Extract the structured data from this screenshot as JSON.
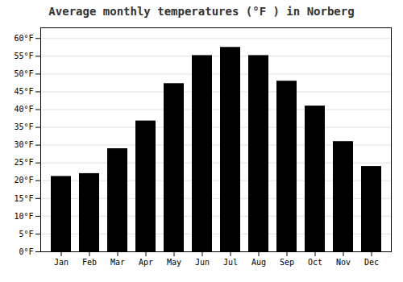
{
  "chart_data": {
    "type": "bar",
    "title": "Average monthly temperatures (°F ) in Norberg",
    "categories": [
      "Jan",
      "Feb",
      "Mar",
      "Apr",
      "May",
      "Jun",
      "Jul",
      "Aug",
      "Sep",
      "Oct",
      "Nov",
      "Dec"
    ],
    "values": [
      21.2,
      22.0,
      29.0,
      36.8,
      47.3,
      55.2,
      57.5,
      55.2,
      48.0,
      41.0,
      31.0,
      24.0
    ],
    "ylim": [
      0,
      63
    ],
    "yticks": [
      {
        "value": 0,
        "label": "0°F"
      },
      {
        "value": 5,
        "label": "5°F"
      },
      {
        "value": 10,
        "label": "10°F"
      },
      {
        "value": 15,
        "label": "15°F"
      },
      {
        "value": 20,
        "label": "20°F"
      },
      {
        "value": 25,
        "label": "25°F"
      },
      {
        "value": 30,
        "label": "30°F"
      },
      {
        "value": 35,
        "label": "35°F"
      },
      {
        "value": 40,
        "label": "40°F"
      },
      {
        "value": 45,
        "label": "45°F"
      },
      {
        "value": 50,
        "label": "50°F"
      },
      {
        "value": 55,
        "label": "55°F"
      },
      {
        "value": 60,
        "label": "60°F"
      }
    ],
    "grid": true
  }
}
